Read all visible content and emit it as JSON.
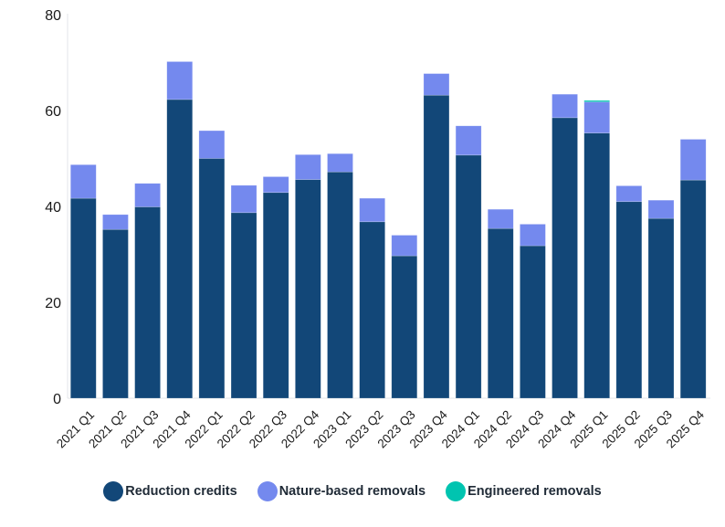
{
  "chart_data": {
    "type": "bar",
    "stacked": true,
    "title": "",
    "xlabel": "",
    "ylabel": "",
    "ylim": [
      0,
      80
    ],
    "yticks": [
      0,
      20,
      40,
      60,
      80
    ],
    "grid": false,
    "legend_position": "bottom-center",
    "categories": [
      "2021 Q1",
      "2021 Q2",
      "2021 Q3",
      "2021 Q4",
      "2022 Q1",
      "2022 Q2",
      "2022 Q3",
      "2022 Q4",
      "2023 Q1",
      "2023 Q2",
      "2023 Q3",
      "2023 Q4",
      "2024 Q1",
      "2024 Q2",
      "2024 Q3",
      "2024 Q4",
      "2025 Q1",
      "2025 Q2",
      "2025 Q3",
      "2025 Q4"
    ],
    "series": [
      {
        "name": "Reduction credits",
        "color": "#124778",
        "values": [
          41.7,
          35.2,
          39.9,
          62.3,
          50.0,
          38.7,
          42.9,
          45.6,
          47.2,
          36.8,
          29.7,
          63.2,
          50.7,
          35.4,
          31.8,
          58.5,
          55.3,
          41.0,
          37.5,
          45.5
        ]
      },
      {
        "name": "Nature-based removals",
        "color": "#7489ee",
        "values": [
          7.0,
          3.1,
          4.9,
          7.9,
          5.8,
          5.7,
          3.3,
          5.2,
          3.8,
          4.9,
          4.3,
          4.5,
          6.1,
          4.0,
          4.5,
          4.9,
          6.5,
          3.3,
          3.8,
          8.5
        ]
      },
      {
        "name": "Engineered removals",
        "color": "#00c4b0",
        "values": [
          0,
          0,
          0,
          0,
          0,
          0,
          0,
          0,
          0,
          0,
          0,
          0,
          0,
          0,
          0,
          0,
          0.3,
          0,
          0,
          0
        ]
      }
    ]
  }
}
